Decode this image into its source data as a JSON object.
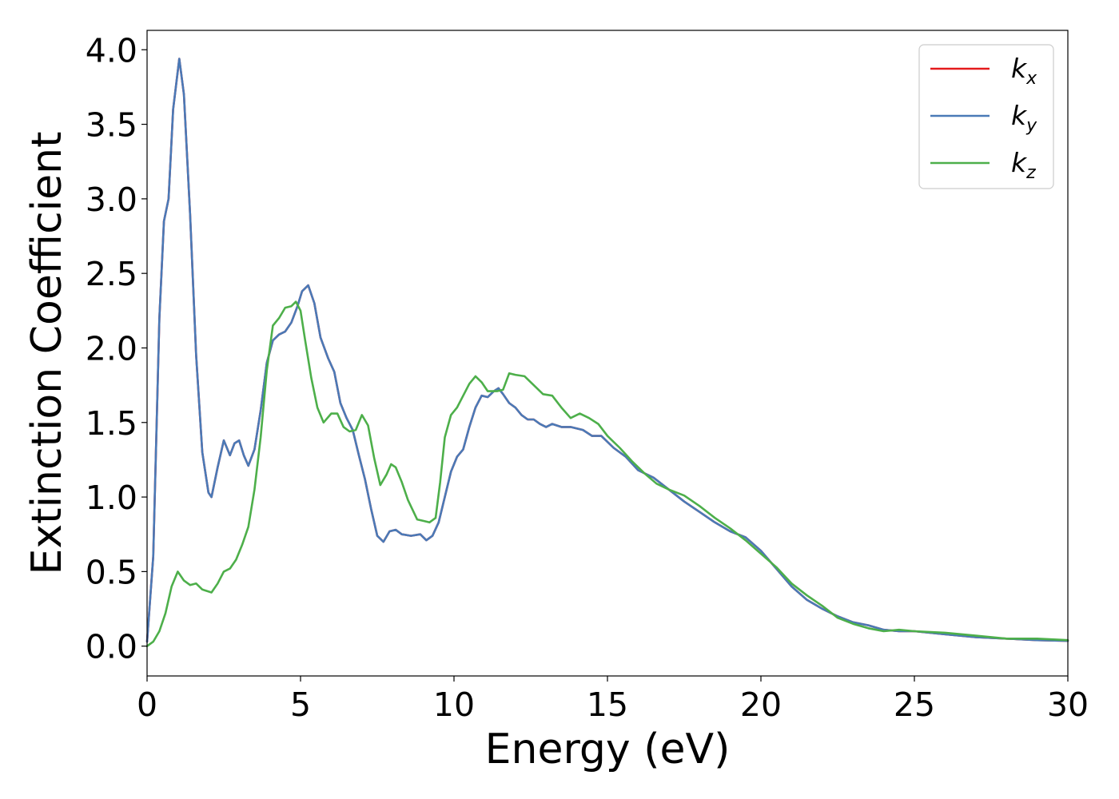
{
  "chart_data": {
    "type": "line",
    "title": "",
    "xlabel": "Energy (eV)",
    "ylabel": "Extinction Coefficient",
    "xlim": [
      0,
      30
    ],
    "ylim": [
      -0.2,
      4.13
    ],
    "xticks": [
      "0",
      "5",
      "10",
      "15",
      "20",
      "25",
      "30"
    ],
    "yticks": [
      "0.0",
      "0.5",
      "1.0",
      "1.5",
      "2.0",
      "2.5",
      "3.0",
      "3.5",
      "4.0"
    ],
    "grid": false,
    "legend_position": "top-right",
    "series": [
      {
        "name": "k_x",
        "label_base": "k",
        "label_sub": "x",
        "color": "#e41a1c",
        "points": [
          [
            0,
            0.03
          ],
          [
            0.2,
            0.6
          ],
          [
            0.4,
            2.2
          ],
          [
            0.55,
            2.85
          ],
          [
            0.7,
            3.0
          ],
          [
            0.85,
            3.6
          ],
          [
            1.05,
            3.94
          ],
          [
            1.2,
            3.7
          ],
          [
            1.4,
            2.9
          ],
          [
            1.6,
            1.95
          ],
          [
            1.8,
            1.3
          ],
          [
            2.0,
            1.03
          ],
          [
            2.1,
            1.0
          ],
          [
            2.3,
            1.2
          ],
          [
            2.5,
            1.38
          ],
          [
            2.7,
            1.28
          ],
          [
            2.85,
            1.36
          ],
          [
            3.0,
            1.38
          ],
          [
            3.15,
            1.28
          ],
          [
            3.3,
            1.21
          ],
          [
            3.5,
            1.32
          ],
          [
            3.7,
            1.58
          ],
          [
            3.9,
            1.9
          ],
          [
            4.1,
            2.05
          ],
          [
            4.3,
            2.09
          ],
          [
            4.5,
            2.11
          ],
          [
            4.7,
            2.17
          ],
          [
            4.9,
            2.28
          ],
          [
            5.05,
            2.38
          ],
          [
            5.25,
            2.42
          ],
          [
            5.45,
            2.3
          ],
          [
            5.65,
            2.07
          ],
          [
            5.9,
            1.93
          ],
          [
            6.1,
            1.84
          ],
          [
            6.3,
            1.63
          ],
          [
            6.5,
            1.53
          ],
          [
            6.7,
            1.45
          ],
          [
            6.9,
            1.28
          ],
          [
            7.1,
            1.12
          ],
          [
            7.3,
            0.92
          ],
          [
            7.5,
            0.74
          ],
          [
            7.7,
            0.7
          ],
          [
            7.9,
            0.77
          ],
          [
            8.1,
            0.78
          ],
          [
            8.3,
            0.75
          ],
          [
            8.6,
            0.74
          ],
          [
            8.9,
            0.75
          ],
          [
            9.1,
            0.71
          ],
          [
            9.3,
            0.74
          ],
          [
            9.5,
            0.83
          ],
          [
            9.7,
            1.0
          ],
          [
            9.9,
            1.17
          ],
          [
            10.1,
            1.27
          ],
          [
            10.3,
            1.32
          ],
          [
            10.5,
            1.47
          ],
          [
            10.7,
            1.6
          ],
          [
            10.9,
            1.68
          ],
          [
            11.1,
            1.67
          ],
          [
            11.3,
            1.71
          ],
          [
            11.45,
            1.73
          ],
          [
            11.6,
            1.69
          ],
          [
            11.8,
            1.63
          ],
          [
            12.0,
            1.6
          ],
          [
            12.2,
            1.55
          ],
          [
            12.4,
            1.52
          ],
          [
            12.6,
            1.52
          ],
          [
            12.8,
            1.49
          ],
          [
            13.0,
            1.47
          ],
          [
            13.2,
            1.49
          ],
          [
            13.5,
            1.47
          ],
          [
            13.8,
            1.47
          ],
          [
            14.2,
            1.45
          ],
          [
            14.5,
            1.41
          ],
          [
            14.8,
            1.41
          ],
          [
            15.2,
            1.33
          ],
          [
            15.6,
            1.27
          ],
          [
            16.0,
            1.18
          ],
          [
            16.5,
            1.13
          ],
          [
            17.0,
            1.05
          ],
          [
            17.5,
            0.97
          ],
          [
            18.0,
            0.9
          ],
          [
            18.5,
            0.83
          ],
          [
            19.0,
            0.77
          ],
          [
            19.5,
            0.73
          ],
          [
            20.0,
            0.64
          ],
          [
            20.5,
            0.52
          ],
          [
            21.0,
            0.4
          ],
          [
            21.5,
            0.31
          ],
          [
            22.0,
            0.25
          ],
          [
            22.5,
            0.2
          ],
          [
            23.0,
            0.16
          ],
          [
            23.5,
            0.14
          ],
          [
            24.0,
            0.11
          ],
          [
            24.5,
            0.1
          ],
          [
            25.0,
            0.1
          ],
          [
            26.0,
            0.08
          ],
          [
            27.0,
            0.06
          ],
          [
            28.0,
            0.05
          ],
          [
            29.0,
            0.04
          ],
          [
            30.0,
            0.035
          ]
        ]
      },
      {
        "name": "k_y",
        "label_base": "k",
        "label_sub": "y",
        "color": "#4a7ab7",
        "points": [
          [
            0,
            0.03
          ],
          [
            0.2,
            0.6
          ],
          [
            0.4,
            2.2
          ],
          [
            0.55,
            2.85
          ],
          [
            0.7,
            3.0
          ],
          [
            0.85,
            3.6
          ],
          [
            1.05,
            3.94
          ],
          [
            1.2,
            3.7
          ],
          [
            1.4,
            2.9
          ],
          [
            1.6,
            1.95
          ],
          [
            1.8,
            1.3
          ],
          [
            2.0,
            1.03
          ],
          [
            2.1,
            1.0
          ],
          [
            2.3,
            1.2
          ],
          [
            2.5,
            1.38
          ],
          [
            2.7,
            1.28
          ],
          [
            2.85,
            1.36
          ],
          [
            3.0,
            1.38
          ],
          [
            3.15,
            1.28
          ],
          [
            3.3,
            1.21
          ],
          [
            3.5,
            1.32
          ],
          [
            3.7,
            1.58
          ],
          [
            3.9,
            1.9
          ],
          [
            4.1,
            2.05
          ],
          [
            4.3,
            2.09
          ],
          [
            4.5,
            2.11
          ],
          [
            4.7,
            2.17
          ],
          [
            4.9,
            2.28
          ],
          [
            5.05,
            2.38
          ],
          [
            5.25,
            2.42
          ],
          [
            5.45,
            2.3
          ],
          [
            5.65,
            2.07
          ],
          [
            5.9,
            1.93
          ],
          [
            6.1,
            1.84
          ],
          [
            6.3,
            1.63
          ],
          [
            6.5,
            1.53
          ],
          [
            6.7,
            1.45
          ],
          [
            6.9,
            1.28
          ],
          [
            7.1,
            1.12
          ],
          [
            7.3,
            0.92
          ],
          [
            7.5,
            0.74
          ],
          [
            7.7,
            0.7
          ],
          [
            7.9,
            0.77
          ],
          [
            8.1,
            0.78
          ],
          [
            8.3,
            0.75
          ],
          [
            8.6,
            0.74
          ],
          [
            8.9,
            0.75
          ],
          [
            9.1,
            0.71
          ],
          [
            9.3,
            0.74
          ],
          [
            9.5,
            0.83
          ],
          [
            9.7,
            1.0
          ],
          [
            9.9,
            1.17
          ],
          [
            10.1,
            1.27
          ],
          [
            10.3,
            1.32
          ],
          [
            10.5,
            1.47
          ],
          [
            10.7,
            1.6
          ],
          [
            10.9,
            1.68
          ],
          [
            11.1,
            1.67
          ],
          [
            11.3,
            1.71
          ],
          [
            11.45,
            1.73
          ],
          [
            11.6,
            1.69
          ],
          [
            11.8,
            1.63
          ],
          [
            12.0,
            1.6
          ],
          [
            12.2,
            1.55
          ],
          [
            12.4,
            1.52
          ],
          [
            12.6,
            1.52
          ],
          [
            12.8,
            1.49
          ],
          [
            13.0,
            1.47
          ],
          [
            13.2,
            1.49
          ],
          [
            13.5,
            1.47
          ],
          [
            13.8,
            1.47
          ],
          [
            14.2,
            1.45
          ],
          [
            14.5,
            1.41
          ],
          [
            14.8,
            1.41
          ],
          [
            15.2,
            1.33
          ],
          [
            15.6,
            1.27
          ],
          [
            16.0,
            1.18
          ],
          [
            16.5,
            1.13
          ],
          [
            17.0,
            1.05
          ],
          [
            17.5,
            0.97
          ],
          [
            18.0,
            0.9
          ],
          [
            18.5,
            0.83
          ],
          [
            19.0,
            0.77
          ],
          [
            19.5,
            0.73
          ],
          [
            20.0,
            0.64
          ],
          [
            20.5,
            0.52
          ],
          [
            21.0,
            0.4
          ],
          [
            21.5,
            0.31
          ],
          [
            22.0,
            0.25
          ],
          [
            22.5,
            0.2
          ],
          [
            23.0,
            0.16
          ],
          [
            23.5,
            0.14
          ],
          [
            24.0,
            0.11
          ],
          [
            24.5,
            0.1
          ],
          [
            25.0,
            0.1
          ],
          [
            26.0,
            0.08
          ],
          [
            27.0,
            0.06
          ],
          [
            28.0,
            0.05
          ],
          [
            29.0,
            0.04
          ],
          [
            30.0,
            0.035
          ]
        ]
      },
      {
        "name": "k_z",
        "label_base": "k",
        "label_sub": "z",
        "color": "#4daf4a",
        "points": [
          [
            0,
            0.0
          ],
          [
            0.2,
            0.03
          ],
          [
            0.4,
            0.1
          ],
          [
            0.6,
            0.22
          ],
          [
            0.8,
            0.4
          ],
          [
            1.0,
            0.5
          ],
          [
            1.2,
            0.44
          ],
          [
            1.4,
            0.41
          ],
          [
            1.6,
            0.42
          ],
          [
            1.8,
            0.38
          ],
          [
            2.1,
            0.36
          ],
          [
            2.3,
            0.42
          ],
          [
            2.5,
            0.5
          ],
          [
            2.7,
            0.52
          ],
          [
            2.9,
            0.58
          ],
          [
            3.1,
            0.68
          ],
          [
            3.3,
            0.8
          ],
          [
            3.5,
            1.05
          ],
          [
            3.7,
            1.4
          ],
          [
            3.9,
            1.85
          ],
          [
            4.1,
            2.15
          ],
          [
            4.3,
            2.2
          ],
          [
            4.5,
            2.27
          ],
          [
            4.7,
            2.28
          ],
          [
            4.85,
            2.31
          ],
          [
            5.0,
            2.25
          ],
          [
            5.15,
            2.05
          ],
          [
            5.35,
            1.8
          ],
          [
            5.55,
            1.6
          ],
          [
            5.75,
            1.5
          ],
          [
            6.0,
            1.56
          ],
          [
            6.2,
            1.56
          ],
          [
            6.4,
            1.47
          ],
          [
            6.6,
            1.44
          ],
          [
            6.8,
            1.45
          ],
          [
            7.0,
            1.55
          ],
          [
            7.2,
            1.48
          ],
          [
            7.4,
            1.26
          ],
          [
            7.6,
            1.08
          ],
          [
            7.8,
            1.15
          ],
          [
            7.95,
            1.22
          ],
          [
            8.1,
            1.2
          ],
          [
            8.3,
            1.1
          ],
          [
            8.5,
            0.98
          ],
          [
            8.8,
            0.85
          ],
          [
            9.0,
            0.84
          ],
          [
            9.2,
            0.83
          ],
          [
            9.4,
            0.86
          ],
          [
            9.55,
            1.1
          ],
          [
            9.7,
            1.4
          ],
          [
            9.9,
            1.55
          ],
          [
            10.1,
            1.6
          ],
          [
            10.3,
            1.68
          ],
          [
            10.5,
            1.76
          ],
          [
            10.7,
            1.81
          ],
          [
            10.9,
            1.77
          ],
          [
            11.1,
            1.71
          ],
          [
            11.4,
            1.71
          ],
          [
            11.6,
            1.72
          ],
          [
            11.8,
            1.83
          ],
          [
            12.0,
            1.82
          ],
          [
            12.3,
            1.81
          ],
          [
            12.6,
            1.75
          ],
          [
            12.9,
            1.69
          ],
          [
            13.2,
            1.68
          ],
          [
            13.5,
            1.6
          ],
          [
            13.8,
            1.53
          ],
          [
            14.1,
            1.56
          ],
          [
            14.4,
            1.53
          ],
          [
            14.7,
            1.49
          ],
          [
            15.0,
            1.41
          ],
          [
            15.4,
            1.33
          ],
          [
            15.8,
            1.24
          ],
          [
            16.2,
            1.16
          ],
          [
            16.6,
            1.09
          ],
          [
            17.0,
            1.05
          ],
          [
            17.5,
            1.01
          ],
          [
            18.0,
            0.94
          ],
          [
            18.5,
            0.86
          ],
          [
            19.0,
            0.79
          ],
          [
            19.5,
            0.71
          ],
          [
            20.0,
            0.62
          ],
          [
            20.5,
            0.53
          ],
          [
            21.0,
            0.42
          ],
          [
            21.5,
            0.34
          ],
          [
            22.0,
            0.27
          ],
          [
            22.5,
            0.19
          ],
          [
            23.0,
            0.15
          ],
          [
            23.5,
            0.12
          ],
          [
            24.0,
            0.1
          ],
          [
            24.5,
            0.11
          ],
          [
            25.0,
            0.1
          ],
          [
            26.0,
            0.09
          ],
          [
            27.0,
            0.07
          ],
          [
            28.0,
            0.05
          ],
          [
            29.0,
            0.05
          ],
          [
            30.0,
            0.04
          ]
        ]
      }
    ]
  }
}
